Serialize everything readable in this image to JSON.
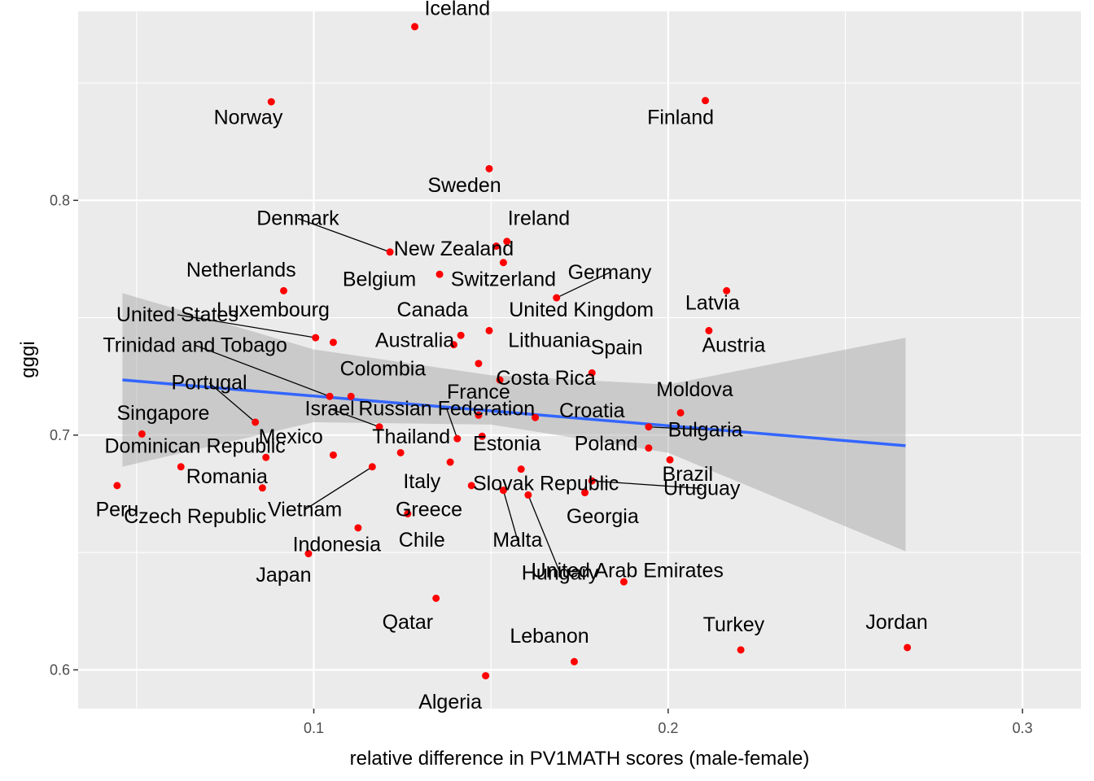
{
  "chart_data": {
    "type": "scatter",
    "title": "",
    "xlabel": "relative difference in PV1MATH scores (male-female)",
    "ylabel": "gggi",
    "xlim": [
      0.0335,
      0.3165
    ],
    "ylim": [
      0.5835,
      0.8805
    ],
    "xticks": [
      0.1,
      0.2,
      0.3
    ],
    "xtick_labels": [
      "0.1",
      "0.2",
      "0.3"
    ],
    "yticks": [
      0.6,
      0.7,
      0.8
    ],
    "ytick_labels": [
      "0.6",
      "0.7",
      "0.8"
    ],
    "grid": true,
    "legend": "none",
    "point_color": "#ff0000",
    "trend_color": "#3366ff",
    "band_color": "#999999",
    "trend_line": {
      "x": [
        0.046,
        0.267
      ],
      "y": [
        0.7235,
        0.6955
      ]
    },
    "confidence_band": {
      "x": [
        0.046,
        0.1,
        0.15,
        0.2,
        0.267
      ],
      "lower": [
        0.6865,
        0.7055,
        0.7045,
        0.6925,
        0.6505
      ],
      "upper": [
        0.7605,
        0.7365,
        0.7255,
        0.7215,
        0.7415
      ]
    },
    "points": [
      {
        "label": "Iceland",
        "x": 0.1285,
        "y": 0.874,
        "lx": 0.1405,
        "ly": 0.879,
        "leader": false
      },
      {
        "label": "Norway",
        "x": 0.088,
        "y": 0.842,
        "lx": 0.0815,
        "ly": 0.8325,
        "leader": false
      },
      {
        "label": "Finland",
        "x": 0.2105,
        "y": 0.8425,
        "lx": 0.2035,
        "ly": 0.8325,
        "leader": false
      },
      {
        "label": "Sweden",
        "x": 0.1495,
        "y": 0.8135,
        "lx": 0.1425,
        "ly": 0.8035,
        "leader": false
      },
      {
        "label": "Denmark",
        "x": 0.1215,
        "y": 0.778,
        "lx": 0.0955,
        "ly": 0.7895,
        "leader": true
      },
      {
        "label": "Ireland",
        "x": 0.1545,
        "y": 0.7825,
        "lx": 0.1635,
        "ly": 0.7895,
        "leader": false
      },
      {
        "label": "New Zealand",
        "x": 0.1515,
        "y": 0.7805,
        "lx": 0.1395,
        "ly": 0.7765,
        "leader": false
      },
      {
        "label": "Switzerland",
        "x": 0.1535,
        "y": 0.7735,
        "lx": 0.1535,
        "ly": 0.7635,
        "leader": false
      },
      {
        "label": "Belgium",
        "x": 0.1355,
        "y": 0.7685,
        "lx": 0.1185,
        "ly": 0.7635,
        "leader": false
      },
      {
        "label": "Germany",
        "x": 0.1685,
        "y": 0.7585,
        "lx": 0.1835,
        "ly": 0.7665,
        "leader": true
      },
      {
        "label": "Netherlands",
        "x": 0.0915,
        "y": 0.7615,
        "lx": 0.0795,
        "ly": 0.7675,
        "leader": false
      },
      {
        "label": "Latvia",
        "x": 0.2165,
        "y": 0.7615,
        "lx": 0.2125,
        "ly": 0.7535,
        "leader": false
      },
      {
        "label": "Luxembourg",
        "x": 0.1055,
        "y": 0.7395,
        "lx": 0.0885,
        "ly": 0.7505,
        "leader": false
      },
      {
        "label": "Canada",
        "x": 0.1415,
        "y": 0.7425,
        "lx": 0.1335,
        "ly": 0.7505,
        "leader": false
      },
      {
        "label": "United Kingdom",
        "x": 0.1495,
        "y": 0.7445,
        "lx": 0.1755,
        "ly": 0.7505,
        "leader": false
      },
      {
        "label": "United States",
        "x": 0.1005,
        "y": 0.7415,
        "lx": 0.0615,
        "ly": 0.7485,
        "leader": true
      },
      {
        "label": "Austria",
        "x": 0.2115,
        "y": 0.7445,
        "lx": 0.2185,
        "ly": 0.7355,
        "leader": false
      },
      {
        "label": "Australia",
        "x": 0.1395,
        "y": 0.7385,
        "lx": 0.1285,
        "ly": 0.7375,
        "leader": false
      },
      {
        "label": "Lithuania",
        "x": 0.1465,
        "y": 0.7305,
        "lx": 0.1665,
        "ly": 0.7375,
        "leader": false
      },
      {
        "label": "Spain",
        "x": 0.1785,
        "y": 0.7265,
        "lx": 0.1855,
        "ly": 0.7345,
        "leader": false
      },
      {
        "label": "Trinidad and Tobago",
        "x": 0.1045,
        "y": 0.7165,
        "lx": 0.0665,
        "ly": 0.7355,
        "leader": true
      },
      {
        "label": "Costa Rica",
        "x": 0.1525,
        "y": 0.7235,
        "lx": 0.1655,
        "ly": 0.7215,
        "leader": false
      },
      {
        "label": "Colombia",
        "x": 0.1105,
        "y": 0.7165,
        "lx": 0.1195,
        "ly": 0.7255,
        "leader": false
      },
      {
        "label": "Portugal",
        "x": 0.0835,
        "y": 0.7055,
        "lx": 0.0705,
        "ly": 0.7195,
        "leader": true
      },
      {
        "label": "France",
        "x": 0.1465,
        "y": 0.7085,
        "lx": 0.1465,
        "ly": 0.7155,
        "leader": false
      },
      {
        "label": "Moldova",
        "x": 0.2035,
        "y": 0.7095,
        "lx": 0.2075,
        "ly": 0.7165,
        "leader": false
      },
      {
        "label": "Russian Federation",
        "x": 0.1405,
        "y": 0.6985,
        "lx": 0.1375,
        "ly": 0.7085,
        "leader": true
      },
      {
        "label": "Israel",
        "x": 0.1185,
        "y": 0.7035,
        "lx": 0.1045,
        "ly": 0.7085,
        "leader": true
      },
      {
        "label": "Croatia",
        "x": 0.1625,
        "y": 0.7075,
        "lx": 0.1785,
        "ly": 0.7075,
        "leader": false
      },
      {
        "label": "Singapore",
        "x": 0.0515,
        "y": 0.7005,
        "lx": 0.0575,
        "ly": 0.7065,
        "leader": false
      },
      {
        "label": "Bulgaria",
        "x": 0.1945,
        "y": 0.7035,
        "lx": 0.2105,
        "ly": 0.6995,
        "leader": true
      },
      {
        "label": "Estonia",
        "x": 0.1475,
        "y": 0.6995,
        "lx": 0.1545,
        "ly": 0.6935,
        "leader": false
      },
      {
        "label": "Mexico",
        "x": 0.0865,
        "y": 0.6905,
        "lx": 0.0935,
        "ly": 0.6965,
        "leader": false
      },
      {
        "label": "Thailand",
        "x": 0.1055,
        "y": 0.6915,
        "lx": 0.1275,
        "ly": 0.6965,
        "leader": false
      },
      {
        "label": "Dominican Republic",
        "x": 0.1245,
        "y": 0.6925,
        "lx": 0.0665,
        "ly": 0.6925,
        "leader": false
      },
      {
        "label": "Poland",
        "x": 0.1945,
        "y": 0.6945,
        "lx": 0.1825,
        "ly": 0.6935,
        "leader": false
      },
      {
        "label": "Brazil",
        "x": 0.2005,
        "y": 0.6895,
        "lx": 0.2055,
        "ly": 0.6805,
        "leader": false
      },
      {
        "label": "Romania",
        "x": 0.0625,
        "y": 0.6865,
        "lx": 0.0755,
        "ly": 0.6795,
        "leader": false
      },
      {
        "label": "Italy",
        "x": 0.1385,
        "y": 0.6885,
        "lx": 0.1305,
        "ly": 0.6775,
        "leader": false
      },
      {
        "label": "Slovak Republic",
        "x": 0.1585,
        "y": 0.6855,
        "lx": 0.1655,
        "ly": 0.6765,
        "leader": false
      },
      {
        "label": "Uruguay",
        "x": 0.1785,
        "y": 0.6805,
        "lx": 0.2095,
        "ly": 0.6745,
        "leader": true
      },
      {
        "label": "Peru",
        "x": 0.0445,
        "y": 0.6785,
        "lx": 0.0445,
        "ly": 0.6655,
        "leader": false
      },
      {
        "label": "Czech Republic",
        "x": 0.0855,
        "y": 0.6775,
        "lx": 0.0665,
        "ly": 0.6625,
        "leader": false
      },
      {
        "label": "Vietnam",
        "x": 0.1165,
        "y": 0.6865,
        "lx": 0.0975,
        "ly": 0.6655,
        "leader": true
      },
      {
        "label": "Greece",
        "x": 0.1445,
        "y": 0.6785,
        "lx": 0.1325,
        "ly": 0.6655,
        "leader": false
      },
      {
        "label": "Malta",
        "x": 0.1535,
        "y": 0.6765,
        "lx": 0.1575,
        "ly": 0.6525,
        "leader": true
      },
      {
        "label": "Georgia",
        "x": 0.1765,
        "y": 0.6755,
        "lx": 0.1815,
        "ly": 0.6625,
        "leader": false
      },
      {
        "label": "Hungary",
        "x": 0.1605,
        "y": 0.6745,
        "lx": 0.1695,
        "ly": 0.6385,
        "leader": true
      },
      {
        "label": "Chile",
        "x": 0.1265,
        "y": 0.6665,
        "lx": 0.1305,
        "ly": 0.6525,
        "leader": false
      },
      {
        "label": "Indonesia",
        "x": 0.1125,
        "y": 0.6605,
        "lx": 0.1065,
        "ly": 0.6505,
        "leader": false
      },
      {
        "label": "Japan",
        "x": 0.0985,
        "y": 0.6495,
        "lx": 0.0915,
        "ly": 0.6375,
        "leader": false
      },
      {
        "label": "United Arab Emirates",
        "x": 0.1875,
        "y": 0.6375,
        "lx": 0.1885,
        "ly": 0.6395,
        "leader": false
      },
      {
        "label": "Qatar",
        "x": 0.1345,
        "y": 0.6305,
        "lx": 0.1265,
        "ly": 0.6175,
        "leader": false
      },
      {
        "label": "Jordan",
        "x": 0.2675,
        "y": 0.6095,
        "lx": 0.2645,
        "ly": 0.6175,
        "leader": false
      },
      {
        "label": "Turkey",
        "x": 0.2205,
        "y": 0.6085,
        "lx": 0.2185,
        "ly": 0.6165,
        "leader": false
      },
      {
        "label": "Lebanon",
        "x": 0.1735,
        "y": 0.6035,
        "lx": 0.1665,
        "ly": 0.6115,
        "leader": false
      },
      {
        "label": "Algeria",
        "x": 0.1485,
        "y": 0.5975,
        "lx": 0.1385,
        "ly": 0.5835,
        "leader": false
      }
    ]
  }
}
